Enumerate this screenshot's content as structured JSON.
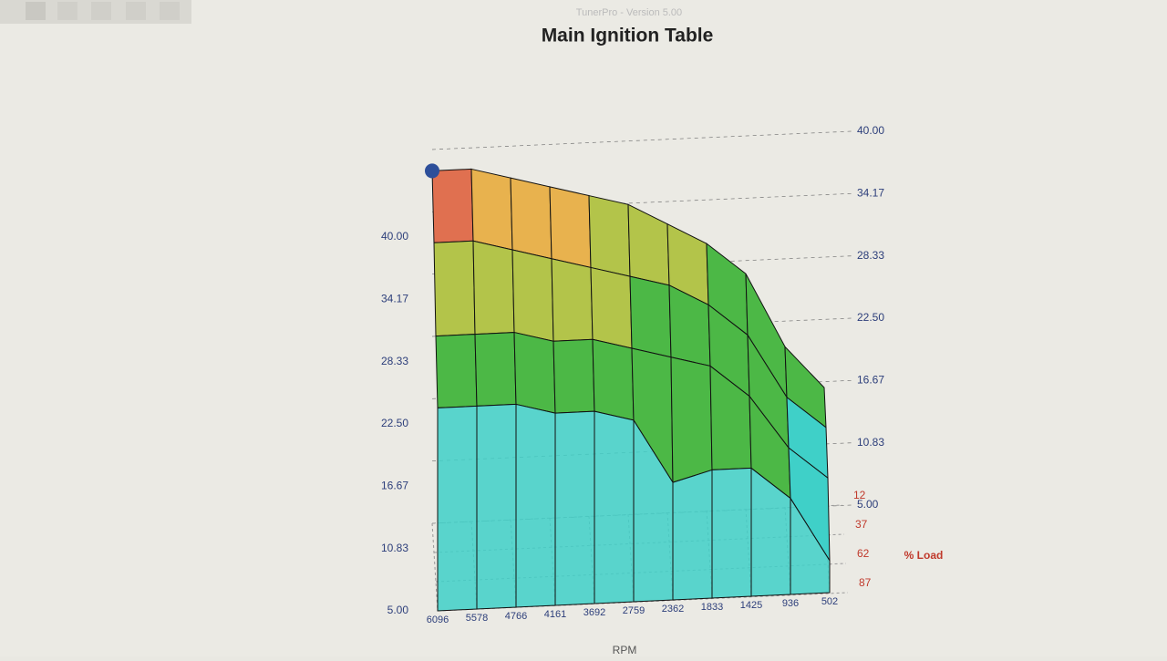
{
  "window_title": "TunerPro - Version 5.00",
  "chart_data": {
    "type": "surface",
    "title": "Main Ignition Table",
    "x_label": "RPM",
    "y_label": "% Load",
    "x_categories": [
      "6096",
      "5578",
      "4766",
      "4161",
      "3692",
      "2759",
      "2362",
      "1833",
      "1425",
      "936",
      "502"
    ],
    "y_categories": [
      "12",
      "37",
      "62",
      "87"
    ],
    "values": [
      [
        38,
        38,
        37,
        36,
        35,
        34,
        32,
        30,
        27,
        20,
        16
      ],
      [
        34,
        34,
        33,
        32,
        31,
        30,
        29,
        27,
        24,
        18,
        15
      ],
      [
        28,
        28,
        28,
        27,
        27,
        26,
        25,
        24,
        21,
        16,
        13
      ],
      [
        24,
        24,
        24,
        23,
        23,
        22,
        16,
        17,
        17,
        14,
        8
      ]
    ],
    "zlim": [
      5,
      40
    ],
    "zticks": [
      {
        "value": 5,
        "label": "5.00"
      },
      10.83,
      16.67,
      {
        "value": 22.5,
        "label": "22.50"
      },
      28.33,
      34.17,
      {
        "value": 40,
        "label": "40.00"
      }
    ],
    "grid": true
  }
}
